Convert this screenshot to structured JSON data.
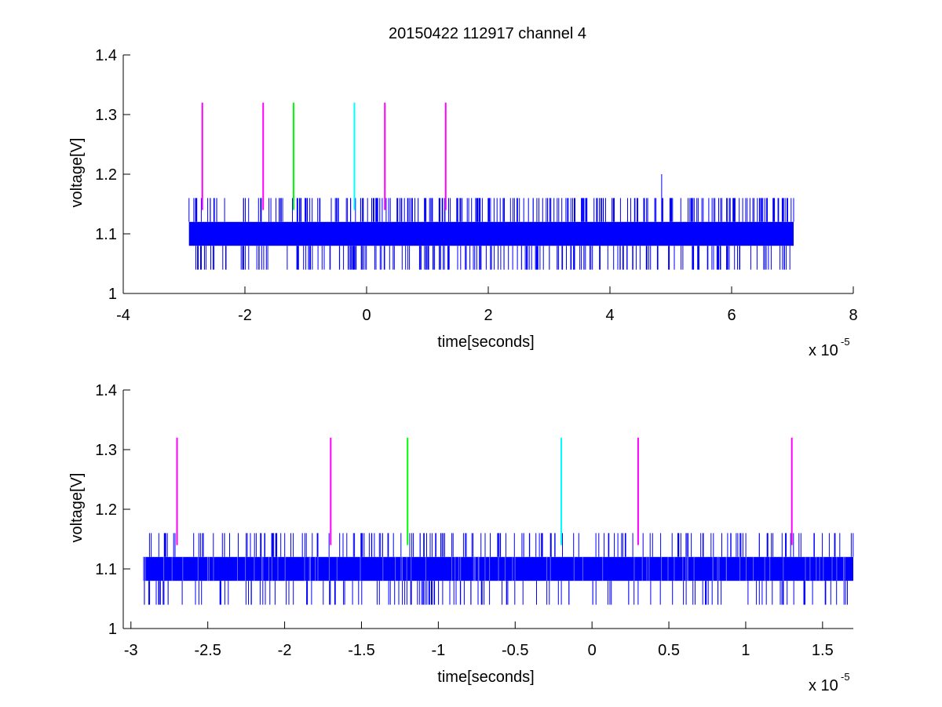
{
  "figure": {
    "title": "20150422 112917 channel 4"
  },
  "chart_data": [
    {
      "type": "line",
      "title": "20150422 112917 channel 4",
      "xlabel": "time[seconds]",
      "ylabel": "voltage[V]",
      "x_multiplier": "x 10",
      "x_exponent": "-5",
      "xlim": [
        -4,
        8
      ],
      "ylim": [
        1,
        1.4
      ],
      "xticks": [
        -4,
        -2,
        0,
        2,
        4,
        6,
        8
      ],
      "xtick_labels": [
        "-4",
        "-2",
        "0",
        "2",
        "4",
        "6",
        "8"
      ],
      "yticks": [
        1,
        1.1,
        1.2,
        1.3,
        1.4
      ],
      "ytick_labels": [
        "1",
        "1.1",
        "1.2",
        "1.3",
        "1.4"
      ],
      "grid": false,
      "signal": {
        "color": "#0000ff",
        "x_range": [
          -2.92,
          7.02
        ],
        "band": [
          1.08,
          1.12
        ],
        "levels": {
          "high": 1.16,
          "low": 1.04
        },
        "spike": {
          "x": 4.85,
          "y": 1.2
        }
      },
      "markers": [
        {
          "x": -2.7,
          "y": [
            1.14,
            1.32
          ],
          "color": "#ff00ff"
        },
        {
          "x": -1.7,
          "y": [
            1.14,
            1.32
          ],
          "color": "#ff00ff"
        },
        {
          "x": -1.2,
          "y": [
            1.14,
            1.32
          ],
          "color": "#00ff00"
        },
        {
          "x": -0.2,
          "y": [
            1.14,
            1.32
          ],
          "color": "#00ffff"
        },
        {
          "x": 0.3,
          "y": [
            1.14,
            1.32
          ],
          "color": "#ff00ff"
        },
        {
          "x": 1.3,
          "y": [
            1.14,
            1.32
          ],
          "color": "#ff00ff"
        }
      ]
    },
    {
      "type": "line",
      "xlabel": "time[seconds]",
      "ylabel": "voltage[V]",
      "x_multiplier": "x 10",
      "x_exponent": "-5",
      "xlim": [
        -3.05,
        1.7
      ],
      "ylim": [
        1,
        1.4
      ],
      "xticks": [
        -3,
        -2.5,
        -2,
        -1.5,
        -1,
        -0.5,
        0,
        0.5,
        1,
        1.5
      ],
      "xtick_labels": [
        "-3",
        "-2.5",
        "-2",
        "-1.5",
        "-1",
        "-0.5",
        "0",
        "0.5",
        "1",
        "1.5"
      ],
      "yticks": [
        1,
        1.1,
        1.2,
        1.3,
        1.4
      ],
      "ytick_labels": [
        "1",
        "1.1",
        "1.2",
        "1.3",
        "1.4"
      ],
      "grid": false,
      "signal": {
        "color": "#0000ff",
        "x_range": [
          -2.92,
          1.7
        ],
        "band": [
          1.08,
          1.12
        ],
        "levels": {
          "high": 1.16,
          "low": 1.04
        }
      },
      "markers": [
        {
          "x": -2.7,
          "y": [
            1.14,
            1.32
          ],
          "color": "#ff00ff"
        },
        {
          "x": -1.7,
          "y": [
            1.14,
            1.32
          ],
          "color": "#ff00ff"
        },
        {
          "x": -1.2,
          "y": [
            1.14,
            1.32
          ],
          "color": "#00ff00"
        },
        {
          "x": -0.2,
          "y": [
            1.14,
            1.32
          ],
          "color": "#00ffff"
        },
        {
          "x": 0.3,
          "y": [
            1.14,
            1.32
          ],
          "color": "#ff00ff"
        },
        {
          "x": 1.3,
          "y": [
            1.14,
            1.32
          ],
          "color": "#ff00ff"
        }
      ]
    }
  ]
}
